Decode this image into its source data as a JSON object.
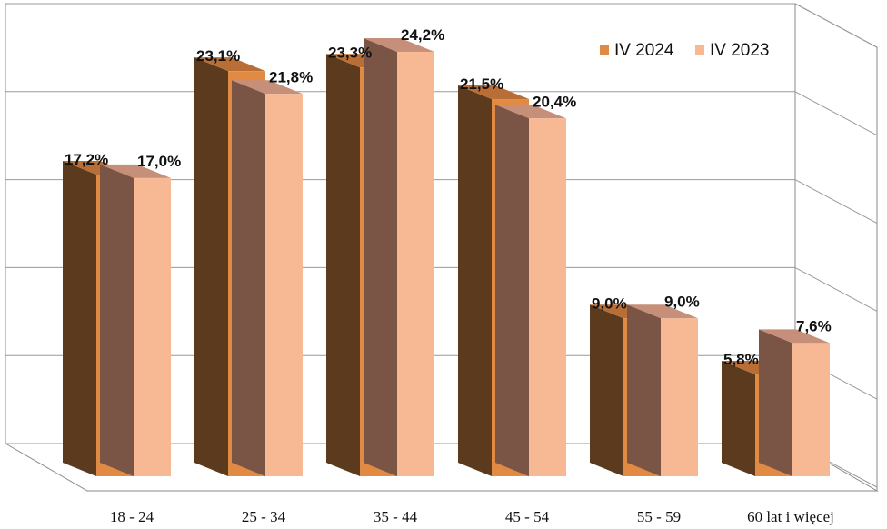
{
  "chart_data": {
    "type": "bar",
    "categories": [
      "18 - 24",
      "25 - 34",
      "35 - 44",
      "45 - 54",
      "55 - 59",
      "60 lat i więcej"
    ],
    "series": [
      {
        "name": "IV 2024",
        "values": [
          17.2,
          23.1,
          23.3,
          21.5,
          9.0,
          5.8
        ],
        "labels": [
          "17,2%",
          "23,1%",
          "23,3%",
          "21,5%",
          "9,0%",
          "5,8%"
        ]
      },
      {
        "name": "IV 2023",
        "values": [
          17.0,
          21.8,
          24.2,
          20.4,
          9.0,
          7.6
        ],
        "labels": [
          "17,0%",
          "21,8%",
          "24,2%",
          "20,4%",
          "9,0%",
          "7,6%"
        ]
      }
    ],
    "ylim": [
      0,
      25
    ],
    "grid": true,
    "legend_position": "top-right",
    "colors": {
      "IV 2024": {
        "front": "#E08A43",
        "side": "#5C3A1E",
        "top": "#B96E36"
      },
      "IV 2023": {
        "front": "#F7B894",
        "side": "#7A5546",
        "top": "#C58F7A"
      }
    }
  }
}
